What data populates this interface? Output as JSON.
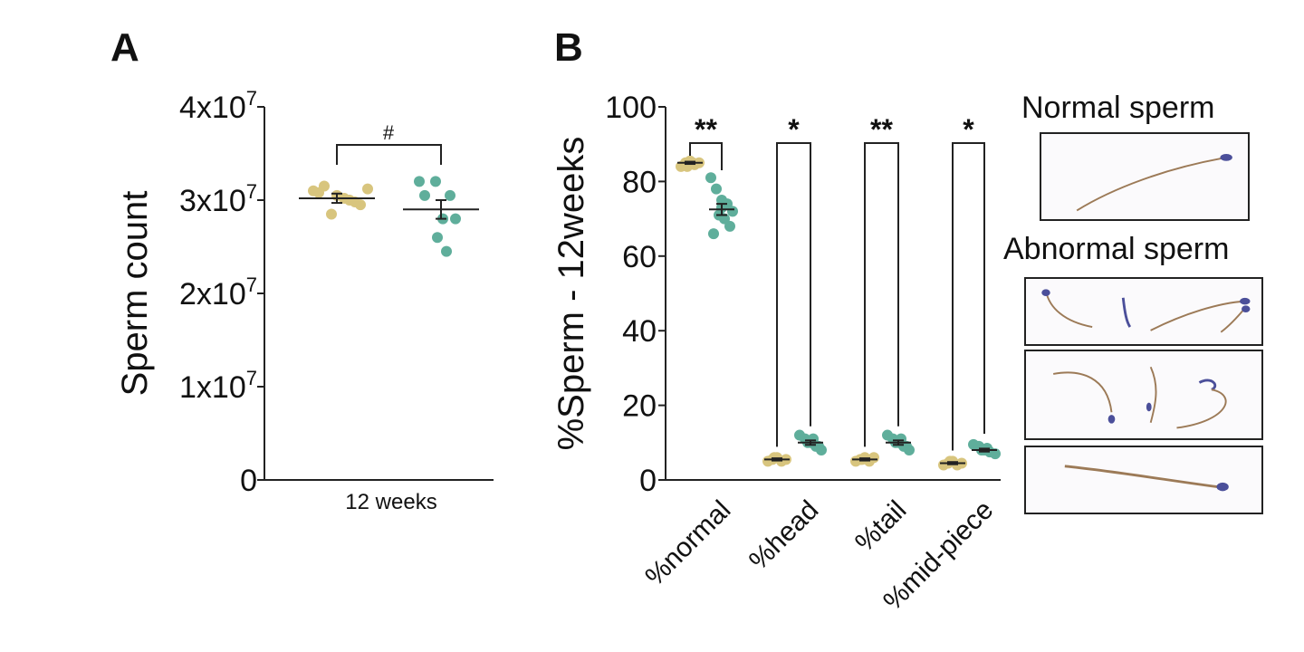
{
  "panels": {
    "a": {
      "label": "A"
    },
    "b": {
      "label": "B"
    }
  },
  "colors": {
    "group1": "#d8c57e",
    "group2": "#5fae9b",
    "axis": "#222222",
    "stain_purple": "#4b4f9a",
    "stain_brown": "#9c7a57"
  },
  "chart_data": [
    {
      "type": "scatter",
      "panel": "A",
      "xlabel": "12 weeks",
      "ylabel": "Sperm count",
      "ylim": [
        0,
        40000000
      ],
      "yticks": [
        {
          "value": 0,
          "base": "0",
          "exp": ""
        },
        {
          "value": 10000000,
          "base": "1x10",
          "exp": "7"
        },
        {
          "value": 20000000,
          "base": "2x10",
          "exp": "7"
        },
        {
          "value": 30000000,
          "base": "3x10",
          "exp": "7"
        },
        {
          "value": 40000000,
          "base": "4x10",
          "exp": "7"
        }
      ],
      "series": [
        {
          "values": [
            31000000,
            31500000,
            30500000,
            30000000,
            29500000,
            30800000,
            28500000,
            30200000,
            29800000,
            31200000
          ],
          "mean": 30200000,
          "sem": 500000
        },
        {
          "values": [
            32000000,
            32000000,
            30500000,
            30500000,
            28000000,
            28000000,
            26000000,
            24500000
          ],
          "mean": 29000000,
          "sem": 1000000
        }
      ],
      "annotation": "#"
    },
    {
      "type": "scatter",
      "panel": "B",
      "ylabel": "%Sperm - 12weeks",
      "ylim": [
        0,
        100
      ],
      "yticks": [
        0,
        20,
        40,
        60,
        80,
        100
      ],
      "categories": [
        "%normal",
        "%head",
        "%tail",
        "%mid-piece"
      ],
      "significance": [
        "**",
        "*",
        "**",
        "*"
      ],
      "series": [
        {
          "values": [
            [
              84,
              85,
              85.5,
              84.5,
              85,
              84,
              85
            ],
            [
              5,
              5.5,
              6,
              5,
              5.5,
              6
            ],
            [
              5,
              5.5,
              6,
              5,
              6,
              5.5
            ],
            [
              4,
              4.5,
              5,
              4,
              4.5,
              5
            ]
          ],
          "means": [
            85,
            5.5,
            5.5,
            4.5
          ],
          "sems": [
            0.3,
            0.3,
            0.3,
            0.3
          ]
        },
        {
          "values": [
            [
              81,
              78,
              75,
              74,
              72,
              71,
              70,
              68,
              66,
              73
            ],
            [
              12,
              11,
              10,
              9,
              8,
              10,
              11,
              9
            ],
            [
              12,
              11,
              10,
              9,
              8,
              10,
              11,
              9
            ],
            [
              9.5,
              9,
              8,
              7.5,
              7,
              8,
              8.5
            ]
          ],
          "means": [
            72.5,
            10,
            10,
            8
          ],
          "sems": [
            1.5,
            0.6,
            0.6,
            0.4
          ]
        }
      ]
    }
  ],
  "images": {
    "normal_title": "Normal sperm",
    "abnormal_title": "Abnormal sperm"
  }
}
